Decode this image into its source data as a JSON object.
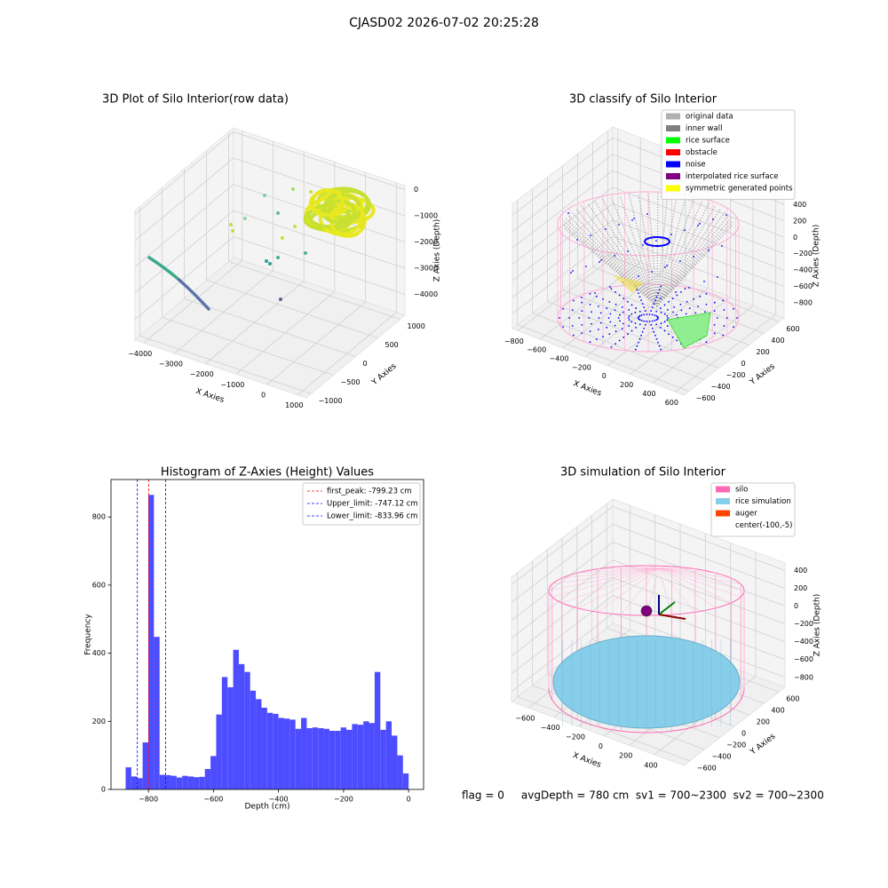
{
  "title": "CJASD02 2026-07-02 20:25:28",
  "chart_data": [
    {
      "type": "scatter3d",
      "title": "3D Plot of Silo Interior(row data)",
      "xlabel": "X Axies",
      "ylabel": "Y Axies",
      "zlabel": "Z Axies (Depth)",
      "xlim": [
        -4280,
        1280
      ],
      "xticks": [
        {
          "value": -4000,
          "label": "−4000"
        },
        {
          "value": -3000,
          "label": "−3000"
        },
        {
          "value": -2000,
          "label": "−2000"
        },
        {
          "value": -1000,
          "label": "−1000"
        },
        0,
        1000
      ],
      "ylim": [
        -1110,
        1110
      ],
      "yticks": [
        {
          "value": -1000,
          "label": "−1000"
        },
        {
          "value": -500,
          "label": "−500"
        },
        0,
        500,
        1000
      ],
      "zlim": [
        -4790,
        150
      ],
      "zticks": [
        0,
        {
          "value": -1000,
          "label": "−1000"
        },
        {
          "value": -2000,
          "label": "−2000"
        },
        {
          "value": -3000,
          "label": "−3000"
        },
        {
          "value": -4000,
          "label": "−4000"
        }
      ],
      "grid": true
    },
    {
      "type": "scatter3d",
      "title": "3D classify of Silo Interior",
      "xlabel": "X Axies",
      "ylabel": "Y Axies",
      "zlabel": "Z Axies (Depth)",
      "xlim": [
        -846,
        676
      ],
      "xticks": [
        {
          "value": -800,
          "label": "−800"
        },
        {
          "value": -600,
          "label": "−600"
        },
        {
          "value": -400,
          "label": "−400"
        },
        {
          "value": -200,
          "label": "−200"
        },
        0,
        200,
        400,
        600
      ],
      "ylim": [
        -667,
        667
      ],
      "yticks": [
        {
          "value": -600,
          "label": "−600"
        },
        {
          "value": -400,
          "label": "−400"
        },
        {
          "value": -200,
          "label": "−200"
        },
        0,
        200,
        400,
        600
      ],
      "zlim": [
        -982,
        533
      ],
      "zticks": [
        400,
        200,
        0,
        {
          "value": -200,
          "label": "−200"
        },
        {
          "value": -400,
          "label": "−400"
        },
        {
          "value": -600,
          "label": "−600"
        },
        {
          "value": -800,
          "label": "−800"
        }
      ],
      "grid": true,
      "legend_loc": "upper right",
      "legend": [
        {
          "name": "original data",
          "color": "#b0b0b0"
        },
        {
          "name": "inner wall",
          "color": "#808080"
        },
        {
          "name": "rice surface",
          "color": "#00ff00"
        },
        {
          "name": "obstacle",
          "color": "#ff0000"
        },
        {
          "name": "noise",
          "color": "#0000ff"
        },
        {
          "name": "interpolated rice surface",
          "color": "#800080"
        },
        {
          "name": "symmetric generated points",
          "color": "#ffff00"
        }
      ]
    },
    {
      "type": "histogram",
      "title": "Histogram of Z-Axies (Height) Values",
      "xlabel": "Depth (cm)",
      "ylabel": "Frequency",
      "color": "#4d4dff",
      "bins": [
        -870.0,
        -852.6,
        -835.2,
        -817.8,
        -800.4,
        -783.0,
        -765.6,
        -748.2,
        -730.8,
        -713.4,
        -696.0,
        -678.6,
        -661.2,
        -643.8,
        -626.4,
        -609.0,
        -591.6,
        -574.2,
        -556.8,
        -539.4,
        -522.0,
        -504.6,
        -487.2,
        -469.8,
        -452.4,
        -435.0,
        -417.6,
        -400.2,
        -382.8,
        -365.4,
        -348.0,
        -330.6,
        -313.2,
        -295.8,
        -278.4,
        -261.0,
        -243.6,
        -226.2,
        -208.8,
        -191.4,
        -174.0,
        -156.6,
        -139.2,
        -121.8,
        -104.4,
        -87.0,
        -69.6,
        -52.2,
        -34.8,
        -17.4,
        0.0
      ],
      "counts": [
        65,
        38,
        33,
        138,
        865,
        448,
        43,
        42,
        40,
        35,
        40,
        38,
        36,
        37,
        60,
        98,
        220,
        330,
        300,
        410,
        368,
        345,
        290,
        265,
        240,
        225,
        222,
        210,
        208,
        205,
        178,
        210,
        180,
        182,
        180,
        178,
        172,
        172,
        182,
        175,
        192,
        190,
        200,
        195,
        345,
        175,
        200,
        158,
        100,
        47
      ],
      "xlim": [
        -915,
        46
      ],
      "xticks": [
        {
          "value": -800,
          "label": "−800"
        },
        {
          "value": -600,
          "label": "−600"
        },
        {
          "value": -400,
          "label": "−400"
        },
        {
          "value": -200,
          "label": "−200"
        },
        0
      ],
      "ylim": [
        0,
        910
      ],
      "yticks": [
        0,
        200,
        400,
        600,
        800
      ],
      "lines": [
        {
          "name": "first_peak: -799.23 cm",
          "value": -799.23,
          "color": "#ff0000"
        },
        {
          "name": "Upper_limit: -747.12 cm",
          "value": -747.12,
          "color": "#0000ff"
        },
        {
          "name": "Lower_limit: -833.96 cm",
          "value": -833.96,
          "color": "#0000ff"
        }
      ],
      "legend_loc": "upper right"
    },
    {
      "type": "surface3d",
      "title": "3D simulation of Silo Interior",
      "xlabel": "X Axies",
      "ylabel": "Y Axies",
      "zlabel": "Z Axies (Depth)",
      "xlim": [
        -737,
        633
      ],
      "xticks": [
        {
          "value": -600,
          "label": "−600"
        },
        {
          "value": -400,
          "label": "−400"
        },
        {
          "value": -200,
          "label": "−200"
        },
        0,
        200,
        400
      ],
      "ylim": [
        -681,
        681
      ],
      "yticks": [
        {
          "value": -600,
          "label": "−600"
        },
        {
          "value": -400,
          "label": "−400"
        },
        {
          "value": -200,
          "label": "−200"
        },
        0,
        200,
        400,
        600
      ],
      "zlim": [
        -912,
        484
      ],
      "zticks": [
        400,
        200,
        0,
        {
          "value": -200,
          "label": "−200"
        },
        {
          "value": -400,
          "label": "−400"
        },
        {
          "value": -600,
          "label": "−600"
        },
        {
          "value": -800,
          "label": "−800"
        }
      ],
      "grid": true,
      "legend_loc": "upper right",
      "legend": [
        {
          "name": "silo",
          "color": "#ff69b4"
        },
        {
          "name": "rice simulation",
          "color": "#87ceeb"
        },
        {
          "name": "auger",
          "color": "#ff4500"
        },
        {
          "name": "center(-100,-5)",
          "color": "#ffffff"
        }
      ]
    }
  ],
  "footer": "flag = 0     avgDepth = 780 cm  sv1 = 700~2300  sv2 = 700~2300"
}
